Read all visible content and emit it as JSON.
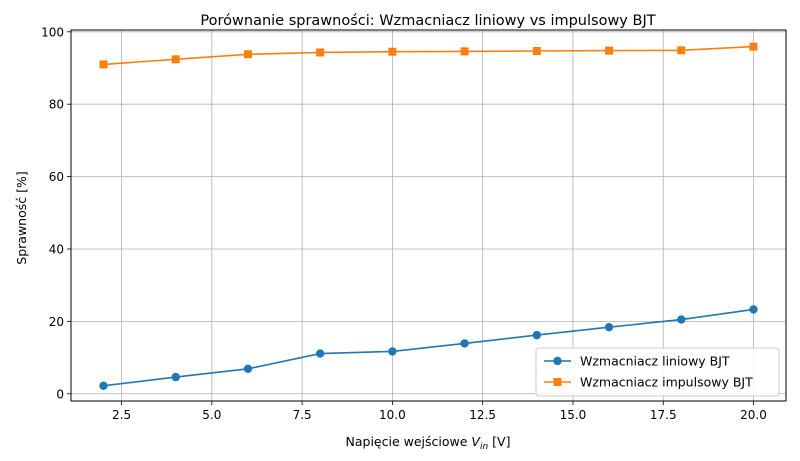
{
  "chart_data": {
    "type": "line",
    "title": "Porównanie sprawności: Wzmacniacz liniowy vs impulsowy BJT",
    "xlabel_prefix": "Napięcie wejściowe ",
    "xlabel_var": "V",
    "xlabel_sub": "in",
    "xlabel_suffix": " [V]",
    "ylabel": "Sprawność [%]",
    "x": [
      2,
      4,
      6,
      8,
      10,
      12,
      14,
      16,
      18,
      20
    ],
    "xlim": [
      1.1,
      20.9
    ],
    "ylim": [
      -2,
      100.5
    ],
    "xticks": [
      2.5,
      5.0,
      7.5,
      10.0,
      12.5,
      15.0,
      17.5,
      20.0
    ],
    "xtick_labels": [
      "2.5",
      "5.0",
      "7.5",
      "10.0",
      "12.5",
      "15.0",
      "17.5",
      "20.0"
    ],
    "yticks": [
      0,
      20,
      40,
      60,
      80,
      100
    ],
    "ytick_labels": [
      "0",
      "20",
      "40",
      "60",
      "80",
      "100"
    ],
    "grid": true,
    "legend_position": "lower-right",
    "series": [
      {
        "name": "Wzmacniacz liniowy BJT",
        "color": "#1f77b4",
        "marker": "circle",
        "values": [
          2.2,
          4.6,
          6.9,
          11.1,
          11.7,
          13.9,
          16.2,
          18.4,
          20.5,
          23.3
        ]
      },
      {
        "name": "Wzmacniacz impulsowy BJT",
        "color": "#ff7f0e",
        "marker": "square",
        "values": [
          91.0,
          92.4,
          93.8,
          94.3,
          94.5,
          94.6,
          94.7,
          94.8,
          94.9,
          95.9
        ]
      }
    ]
  }
}
